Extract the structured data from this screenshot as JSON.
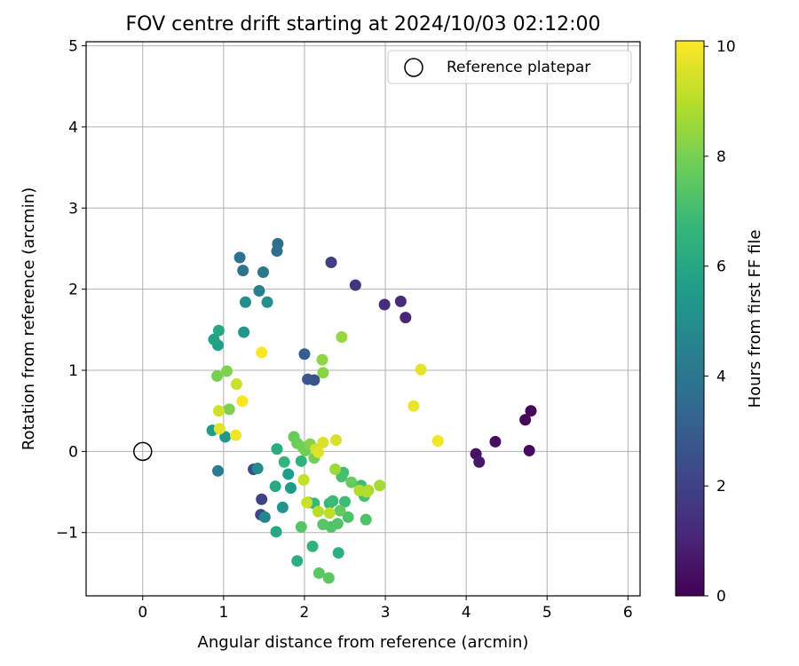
{
  "chart_data": {
    "type": "scatter",
    "title": "FOV centre drift starting at 2024/10/03 02:12:00",
    "xlabel": "Angular distance from reference (arcmin)",
    "ylabel": "Rotation from reference (arcmin)",
    "xlim": [
      -0.7,
      6.15
    ],
    "ylim": [
      -1.78,
      5.05
    ],
    "xticks": [
      0,
      1,
      2,
      3,
      4,
      5,
      6
    ],
    "yticks": [
      -1,
      0,
      1,
      2,
      3,
      4,
      5
    ],
    "grid": true,
    "legend": {
      "position": "top-right",
      "entries": [
        "Reference platepar"
      ]
    },
    "reference_point": {
      "x": 0,
      "y": 0,
      "marker": "open-circle",
      "color": "#000000"
    },
    "colorbar": {
      "label": "Hours from first FF file",
      "min": 0,
      "max": 10.1,
      "ticks": [
        0,
        2,
        4,
        6,
        8,
        10
      ],
      "colormap": "viridis",
      "stops": [
        "#440154",
        "#482878",
        "#3e4989",
        "#31688e",
        "#26828e",
        "#1f9e89",
        "#35b779",
        "#6ece58",
        "#b5de2b",
        "#fde725"
      ]
    },
    "points": [
      {
        "x": 4.8,
        "y": 0.5,
        "h": 0.1
      },
      {
        "x": 4.73,
        "y": 0.39,
        "h": 0.2
      },
      {
        "x": 4.78,
        "y": 0.01,
        "h": 0.3
      },
      {
        "x": 4.36,
        "y": 0.12,
        "h": 0.4
      },
      {
        "x": 4.12,
        "y": -0.03,
        "h": 0.5
      },
      {
        "x": 4.16,
        "y": -0.13,
        "h": 0.6
      },
      {
        "x": 3.25,
        "y": 1.65,
        "h": 1.1
      },
      {
        "x": 3.19,
        "y": 1.85,
        "h": 1.2
      },
      {
        "x": 2.99,
        "y": 1.81,
        "h": 1.3
      },
      {
        "x": 2.63,
        "y": 2.05,
        "h": 1.5
      },
      {
        "x": 2.33,
        "y": 2.33,
        "h": 1.8
      },
      {
        "x": 1.47,
        "y": -0.59,
        "h": 2.0
      },
      {
        "x": 1.46,
        "y": -0.78,
        "h": 2.2
      },
      {
        "x": 1.37,
        "y": -0.22,
        "h": 2.3
      },
      {
        "x": 2.12,
        "y": 0.88,
        "h": 2.6
      },
      {
        "x": 2.04,
        "y": 0.89,
        "h": 2.7
      },
      {
        "x": 2.0,
        "y": 1.2,
        "h": 2.9
      },
      {
        "x": 1.67,
        "y": 2.56,
        "h": 3.6
      },
      {
        "x": 1.66,
        "y": 2.47,
        "h": 3.7
      },
      {
        "x": 1.2,
        "y": 2.39,
        "h": 3.8
      },
      {
        "x": 1.24,
        "y": 2.23,
        "h": 3.9
      },
      {
        "x": 1.49,
        "y": 2.21,
        "h": 4.0
      },
      {
        "x": 1.44,
        "y": 1.98,
        "h": 4.4
      },
      {
        "x": 0.93,
        "y": -0.24,
        "h": 4.3
      },
      {
        "x": 1.51,
        "y": -0.81,
        "h": 4.7
      },
      {
        "x": 1.42,
        "y": -0.21,
        "h": 4.9
      },
      {
        "x": 1.27,
        "y": 1.84,
        "h": 5.0
      },
      {
        "x": 1.54,
        "y": 1.84,
        "h": 5.1
      },
      {
        "x": 1.73,
        "y": -0.69,
        "h": 5.2
      },
      {
        "x": 1.25,
        "y": 1.47,
        "h": 5.3
      },
      {
        "x": 1.02,
        "y": 0.18,
        "h": 5.4
      },
      {
        "x": 0.86,
        "y": 0.26,
        "h": 5.5
      },
      {
        "x": 1.83,
        "y": -0.45,
        "h": 5.5
      },
      {
        "x": 1.8,
        "y": -0.28,
        "h": 5.6
      },
      {
        "x": 0.93,
        "y": 1.31,
        "h": 5.7
      },
      {
        "x": 0.88,
        "y": 1.38,
        "h": 5.8
      },
      {
        "x": 0.94,
        "y": 1.49,
        "h": 6.0
      },
      {
        "x": 1.65,
        "y": -0.99,
        "h": 6.0
      },
      {
        "x": 1.64,
        "y": -0.43,
        "h": 6.1
      },
      {
        "x": 1.66,
        "y": 0.03,
        "h": 6.2
      },
      {
        "x": 1.91,
        "y": -1.35,
        "h": 6.3
      },
      {
        "x": 2.42,
        "y": -1.25,
        "h": 6.4
      },
      {
        "x": 2.1,
        "y": -1.17,
        "h": 6.5
      },
      {
        "x": 1.96,
        "y": -0.12,
        "h": 6.5
      },
      {
        "x": 1.75,
        "y": -0.13,
        "h": 6.6
      },
      {
        "x": 2.05,
        "y": -0.63,
        "h": 6.7
      },
      {
        "x": 2.12,
        "y": -0.64,
        "h": 6.8
      },
      {
        "x": 2.31,
        "y": -0.64,
        "h": 6.8
      },
      {
        "x": 2.5,
        "y": -0.62,
        "h": 6.9
      },
      {
        "x": 2.35,
        "y": -0.61,
        "h": 6.9
      },
      {
        "x": 2.7,
        "y": -0.42,
        "h": 7.0
      },
      {
        "x": 2.48,
        "y": -0.26,
        "h": 7.0
      },
      {
        "x": 2.46,
        "y": -0.31,
        "h": 7.1
      },
      {
        "x": 2.74,
        "y": -0.55,
        "h": 7.1
      },
      {
        "x": 2.76,
        "y": -0.84,
        "h": 7.2
      },
      {
        "x": 2.54,
        "y": -0.81,
        "h": 7.2
      },
      {
        "x": 2.41,
        "y": -0.89,
        "h": 7.3
      },
      {
        "x": 2.33,
        "y": -0.93,
        "h": 7.3
      },
      {
        "x": 2.23,
        "y": -0.9,
        "h": 7.4
      },
      {
        "x": 1.96,
        "y": -0.93,
        "h": 7.4
      },
      {
        "x": 2.3,
        "y": -1.56,
        "h": 7.5
      },
      {
        "x": 2.18,
        "y": -1.5,
        "h": 7.5
      },
      {
        "x": 2.44,
        "y": -0.73,
        "h": 7.6
      },
      {
        "x": 2.58,
        "y": -0.38,
        "h": 7.7
      },
      {
        "x": 1.87,
        "y": 0.18,
        "h": 7.7
      },
      {
        "x": 1.91,
        "y": 0.1,
        "h": 7.8
      },
      {
        "x": 2.01,
        "y": 0.01,
        "h": 7.8
      },
      {
        "x": 1.98,
        "y": 0.05,
        "h": 7.9
      },
      {
        "x": 2.12,
        "y": -0.08,
        "h": 7.9
      },
      {
        "x": 0.92,
        "y": 0.93,
        "h": 8.0
      },
      {
        "x": 1.04,
        "y": 0.99,
        "h": 8.1
      },
      {
        "x": 1.07,
        "y": 0.52,
        "h": 8.1
      },
      {
        "x": 2.07,
        "y": 0.09,
        "h": 8.2
      },
      {
        "x": 2.23,
        "y": 0.97,
        "h": 8.3
      },
      {
        "x": 2.22,
        "y": 1.13,
        "h": 8.4
      },
      {
        "x": 2.46,
        "y": 1.41,
        "h": 8.5
      },
      {
        "x": 2.38,
        "y": -0.22,
        "h": 8.6
      },
      {
        "x": 2.93,
        "y": -0.42,
        "h": 8.7
      },
      {
        "x": 2.79,
        "y": -0.48,
        "h": 8.8
      },
      {
        "x": 2.68,
        "y": -0.48,
        "h": 8.9
      },
      {
        "x": 2.77,
        "y": -0.5,
        "h": 8.9
      },
      {
        "x": 2.17,
        "y": -0.74,
        "h": 9.0
      },
      {
        "x": 2.31,
        "y": -0.76,
        "h": 9.1
      },
      {
        "x": 1.99,
        "y": -0.35,
        "h": 9.2
      },
      {
        "x": 2.03,
        "y": -0.63,
        "h": 9.3
      },
      {
        "x": 1.16,
        "y": 0.83,
        "h": 9.3
      },
      {
        "x": 0.94,
        "y": 0.5,
        "h": 9.4
      },
      {
        "x": 2.14,
        "y": 0.03,
        "h": 9.4
      },
      {
        "x": 2.23,
        "y": 0.11,
        "h": 9.5
      },
      {
        "x": 2.39,
        "y": 0.14,
        "h": 9.5
      },
      {
        "x": 2.17,
        "y": -0.01,
        "h": 9.6
      },
      {
        "x": 0.95,
        "y": 0.28,
        "h": 9.7
      },
      {
        "x": 3.44,
        "y": 1.01,
        "h": 9.7
      },
      {
        "x": 3.35,
        "y": 0.56,
        "h": 9.8
      },
      {
        "x": 3.65,
        "y": 0.13,
        "h": 9.9
      },
      {
        "x": 1.15,
        "y": 0.2,
        "h": 9.9
      },
      {
        "x": 1.23,
        "y": 0.62,
        "h": 10.0
      },
      {
        "x": 1.47,
        "y": 1.22,
        "h": 10.0
      }
    ]
  }
}
